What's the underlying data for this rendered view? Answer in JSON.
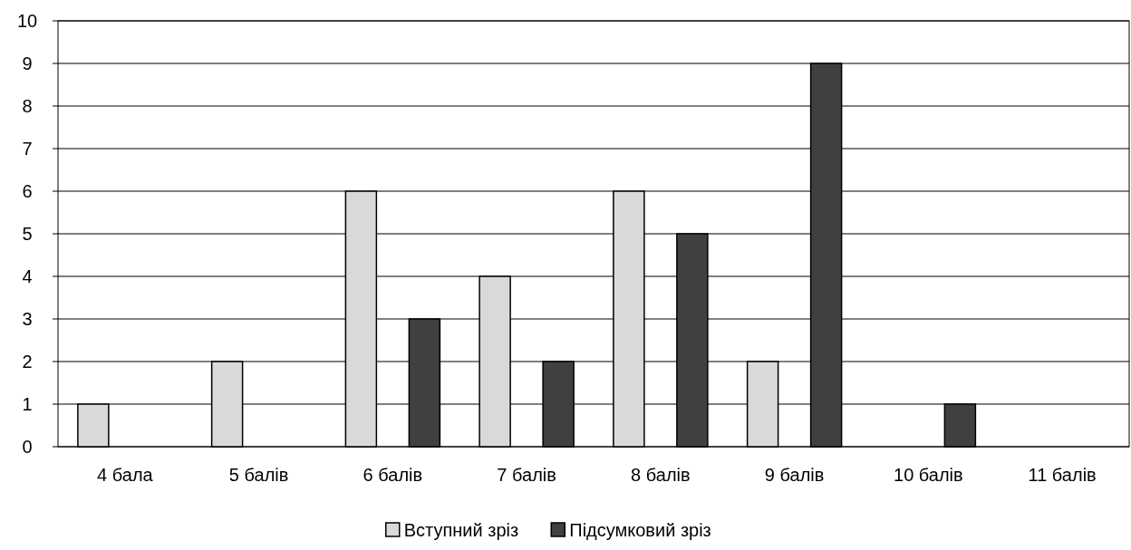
{
  "chart_data": {
    "type": "bar",
    "categories": [
      "4 бала",
      "5 балів",
      "6 балів",
      "7 балів",
      "8 балів",
      "9 балів",
      "10 балів",
      "11 балів"
    ],
    "series": [
      {
        "name": "Вступний зріз",
        "color": "#d9d9d9",
        "values": [
          1,
          2,
          6,
          4,
          6,
          2,
          0,
          0
        ]
      },
      {
        "name": "Підсумковий зріз",
        "color": "#404040",
        "values": [
          0,
          0,
          3,
          2,
          5,
          9,
          1,
          0
        ]
      }
    ],
    "ylim": [
      0,
      10
    ],
    "yticks": [
      0,
      1,
      2,
      3,
      4,
      5,
      6,
      7,
      8,
      9,
      10
    ],
    "grid": "y",
    "legend": "bottom"
  }
}
